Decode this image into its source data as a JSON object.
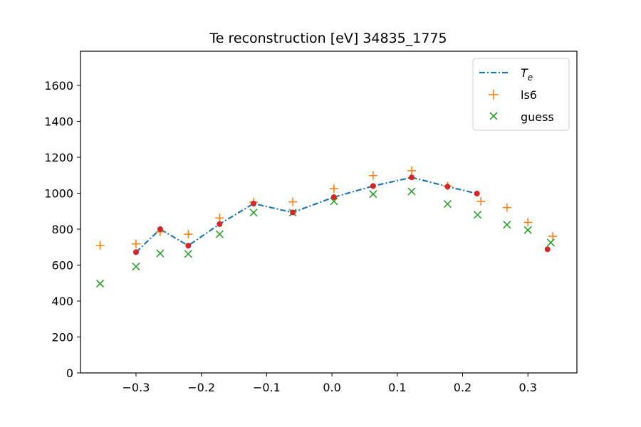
{
  "chart_data": {
    "type": "scatter",
    "title": "Te reconstruction [eV]   34835_1775",
    "xlabel": "",
    "ylabel": "",
    "xlim": [
      -0.385,
      0.375
    ],
    "ylim": [
      0,
      1790
    ],
    "xticks": [
      -0.3,
      -0.2,
      -0.1,
      0.0,
      0.1,
      0.2,
      0.3
    ],
    "xtick_labels": [
      "−0.3",
      "−0.2",
      "−0.1",
      "0.0",
      "0.1",
      "0.2",
      "0.3"
    ],
    "yticks": [
      0,
      200,
      400,
      600,
      800,
      1000,
      1200,
      1400,
      1600
    ],
    "ytick_labels": [
      "0",
      "200",
      "400",
      "600",
      "800",
      "1000",
      "1200",
      "1400",
      "1600"
    ],
    "grid": false,
    "legend_position": "top-right",
    "series": [
      {
        "name": "Te",
        "legend_label": "T",
        "legend_sub": "e",
        "kind": "line",
        "style": "dashdot",
        "color": "#1f77b4",
        "x": [
          -0.3,
          -0.263,
          -0.22,
          -0.172,
          -0.12,
          -0.06,
          0.003,
          0.063,
          0.122,
          0.177,
          0.222
        ],
        "y": [
          672,
          800,
          708,
          828,
          942,
          893,
          978,
          1040,
          1088,
          1037,
          998
        ]
      },
      {
        "name": "red points",
        "kind": "dots",
        "color": "#d62728",
        "x": [
          -0.3,
          -0.263,
          -0.22,
          -0.172,
          -0.12,
          -0.06,
          0.003,
          0.063,
          0.122,
          0.177,
          0.222,
          0.33
        ],
        "y": [
          672,
          800,
          708,
          828,
          942,
          893,
          978,
          1040,
          1088,
          1037,
          998,
          688
        ]
      },
      {
        "name": "ls6",
        "kind": "plus",
        "color": "#ff7f0e",
        "x": [
          -0.355,
          -0.3,
          -0.263,
          -0.22,
          -0.172,
          -0.12,
          -0.06,
          0.003,
          0.063,
          0.122,
          0.177,
          0.228,
          0.268,
          0.3,
          0.338
        ],
        "y": [
          710,
          718,
          785,
          772,
          862,
          950,
          952,
          1025,
          1098,
          1125,
          1040,
          955,
          920,
          838,
          760
        ]
      },
      {
        "name": "guess",
        "kind": "x",
        "color": "#2ca02c",
        "x": [
          -0.355,
          -0.3,
          -0.263,
          -0.22,
          -0.172,
          -0.12,
          -0.06,
          0.003,
          0.063,
          0.122,
          0.177,
          0.223,
          0.268,
          0.3,
          0.335
        ],
        "y": [
          497,
          592,
          665,
          662,
          772,
          892,
          892,
          955,
          995,
          1010,
          940,
          880,
          825,
          795,
          725
        ]
      }
    ]
  }
}
